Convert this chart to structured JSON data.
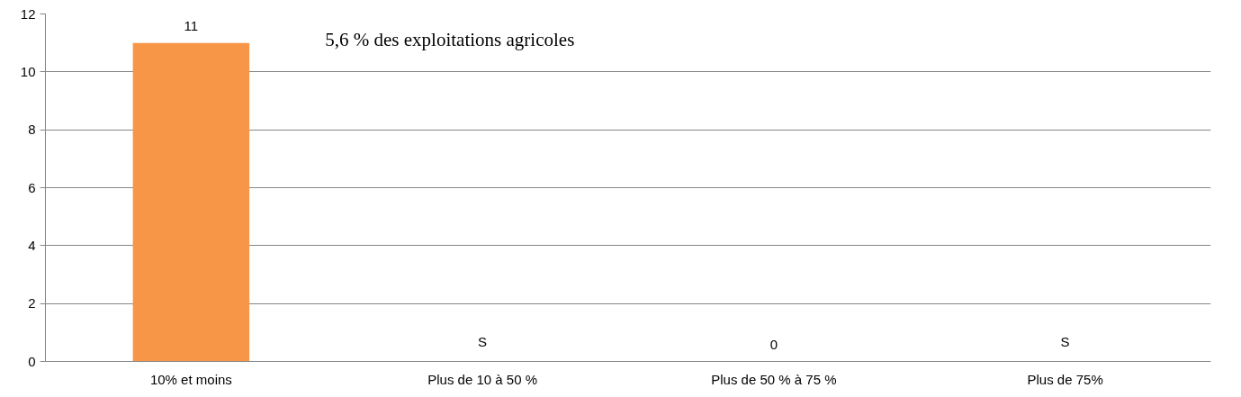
{
  "chart_data": {
    "type": "bar",
    "categories": [
      "10% et moins",
      "Plus de 10 à 50 %",
      "Plus de 50 % à 75 %",
      "Plus de 75%"
    ],
    "values": [
      11,
      null,
      0,
      null
    ],
    "value_labels": [
      "11",
      "S",
      "0",
      "S"
    ],
    "color": "#f79646",
    "ylim": [
      0,
      12
    ],
    "yticks": [
      0,
      2,
      4,
      6,
      8,
      10,
      12
    ],
    "grid": "y",
    "annotations": [
      "5,6  % des exploitations agricoles"
    ]
  }
}
